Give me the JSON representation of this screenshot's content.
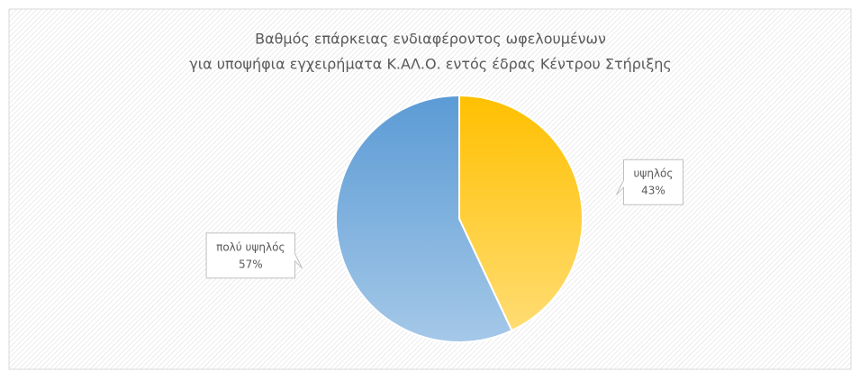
{
  "chart_data": {
    "type": "pie",
    "title": [
      "Βαθμός επάρκειας ενδιαφέροντος ωφελουμένων",
      "για υποψήφια εγχειρήματα Κ.ΑΛ.Ο. εντός έδρας Κέντρου Στήριξης"
    ],
    "categories": [
      "υψηλός",
      "πολύ υψηλός"
    ],
    "values": [
      43,
      57
    ],
    "value_labels": [
      "43%",
      "57%"
    ],
    "colors": [
      "#ffc000",
      "#5b9bd5"
    ]
  }
}
